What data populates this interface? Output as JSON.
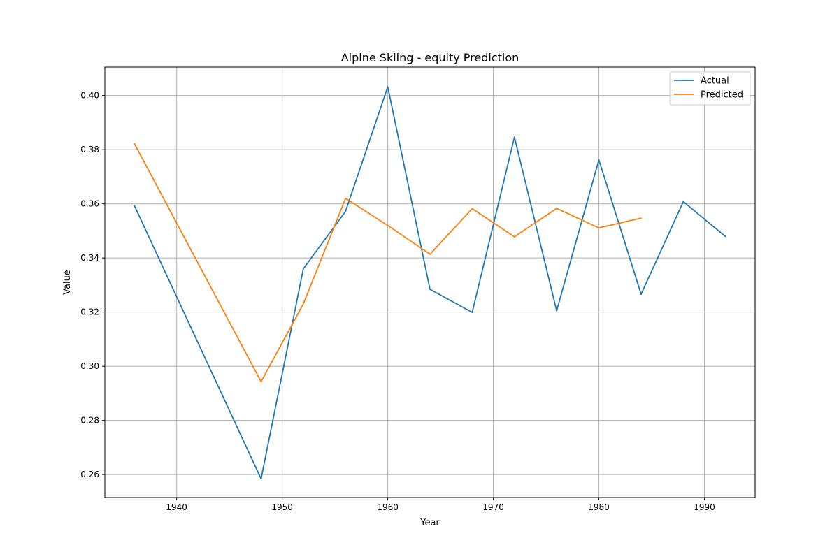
{
  "chart_data": {
    "type": "line",
    "title": "Alpine Skiing - equity Prediction",
    "xlabel": "Year",
    "ylabel": "Value",
    "xlim": [
      1933.2,
      1994.8
    ],
    "ylim": [
      0.2515,
      0.4105
    ],
    "xticks": [
      1940,
      1950,
      1960,
      1970,
      1980,
      1990
    ],
    "yticks": [
      0.26,
      0.28,
      0.3,
      0.32,
      0.34,
      0.36,
      0.38,
      0.4
    ],
    "ytick_labels": [
      "0.26",
      "0.28",
      "0.30",
      "0.32",
      "0.34",
      "0.36",
      "0.38",
      "0.40"
    ],
    "grid": true,
    "legend_position": "top-right",
    "series": [
      {
        "name": "Actual",
        "color": "#1f77b4",
        "x": [
          1936,
          1948,
          1952,
          1956,
          1960,
          1964,
          1968,
          1972,
          1976,
          1980,
          1984,
          1988,
          1992
        ],
        "y": [
          0.3593,
          0.2584,
          0.336,
          0.3572,
          0.4032,
          0.3284,
          0.3199,
          0.3846,
          0.3205,
          0.3762,
          0.3266,
          0.3608,
          0.3479
        ]
      },
      {
        "name": "Predicted",
        "color": "#ff7f0e",
        "x": [
          1936,
          1948,
          1952,
          1956,
          1960,
          1964,
          1968,
          1972,
          1976,
          1980,
          1984
        ],
        "y": [
          0.3822,
          0.2943,
          0.323,
          0.362,
          0.352,
          0.3414,
          0.3582,
          0.3478,
          0.3583,
          0.3511,
          0.3547
        ]
      }
    ]
  }
}
